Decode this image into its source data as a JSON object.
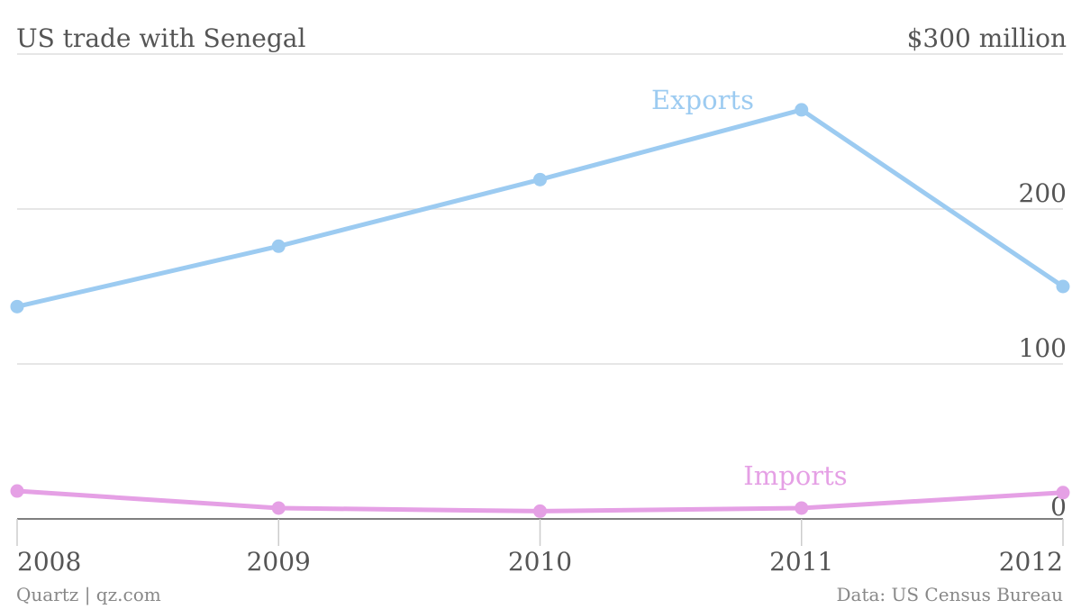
{
  "title": "US trade with Senegal",
  "footer": {
    "source_left": "Quartz | qz.com",
    "source_right": "Data: US Census Bureau"
  },
  "chart_data": {
    "type": "line",
    "title": "US trade with Senegal",
    "x": [
      "2008",
      "2009",
      "2010",
      "2011",
      "2012"
    ],
    "ylim": [
      0,
      300
    ],
    "y_ticks": [
      {
        "value": 300,
        "label": "$300 million"
      },
      {
        "value": 200,
        "label": "200"
      },
      {
        "value": 100,
        "label": "100"
      },
      {
        "value": 0,
        "label": "0"
      }
    ],
    "grid": true,
    "series": [
      {
        "name": "Exports",
        "color": "#9ccbf1",
        "values": [
          137,
          176,
          219,
          264,
          150
        ]
      },
      {
        "name": "Imports",
        "color": "#e5a0e5",
        "values": [
          18,
          7,
          5,
          7,
          17
        ]
      }
    ]
  }
}
